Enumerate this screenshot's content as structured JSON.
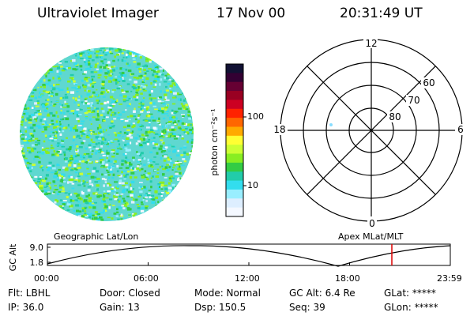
{
  "header": {
    "instrument": "Ultraviolet Imager",
    "date": "17 Nov 00",
    "time": "20:31:49  UT"
  },
  "colorbar": {
    "unit_label": "photon cm⁻²s⁻¹",
    "ticks": [
      "100",
      "10"
    ],
    "colors": [
      "#111133",
      "#330033",
      "#660033",
      "#990022",
      "#cc0022",
      "#ff2200",
      "#ff6600",
      "#ffaa00",
      "#ffff33",
      "#ccff33",
      "#88ee22",
      "#33cc44",
      "#22ccaa",
      "#33ddee",
      "#99eeff",
      "#ddeeff",
      "#f4f8ff"
    ]
  },
  "polar": {
    "mlt_labels": {
      "top": "12",
      "left": "18",
      "right": "6",
      "bottom": "0"
    },
    "lat_labels": [
      "60",
      "70",
      "80"
    ]
  },
  "timeline": {
    "left_label": "Geographic Lat/Lon",
    "right_label": "Apex MLat/MLT",
    "axis_title": "GC Alt",
    "y_ticks": [
      "9.0",
      "1.8"
    ],
    "x_ticks": [
      "00:00",
      "06:00",
      "12:00",
      "18:00",
      "23:59"
    ],
    "marker_color": "#dd0000"
  },
  "info": {
    "row1": {
      "flt": "Flt: LBHL",
      "door": "Door: Closed",
      "mode": "Mode: Normal",
      "gcalt": "GC Alt: 6.4 Re",
      "glat": "GLat: *****"
    },
    "row2": {
      "ip": "IP: 36.0",
      "gain": "Gain: 13",
      "dsp": "Dsp:  150.5",
      "seq": "Seq: 39",
      "glon": "GLon: *****"
    }
  }
}
